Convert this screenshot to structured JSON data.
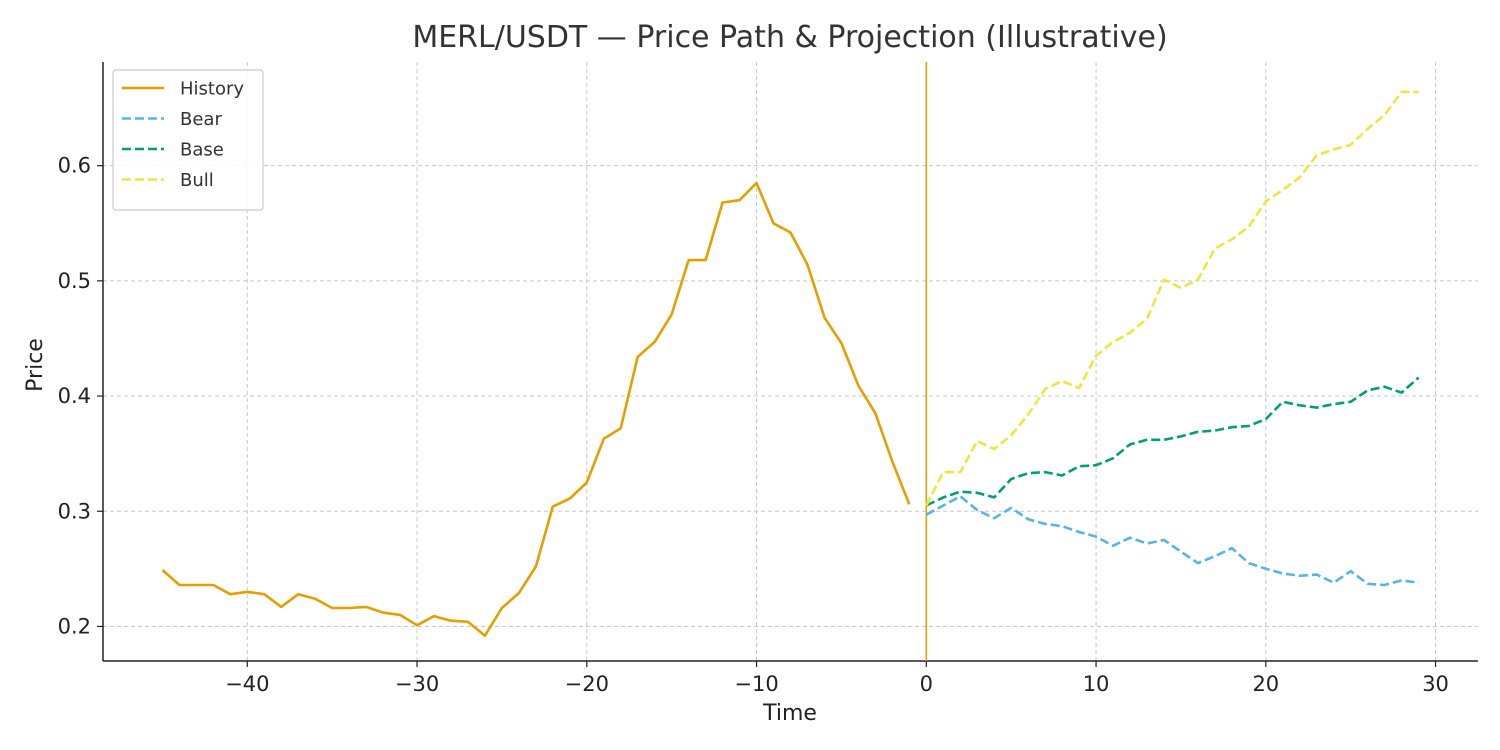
{
  "chart_data": {
    "type": "line",
    "title": "MERL/USDT — Price Path & Projection (Illustrative)",
    "xlabel": "Time",
    "ylabel": "Price",
    "xlim": [
      -48.5,
      32.5
    ],
    "ylim": [
      0.17,
      0.69
    ],
    "xticks": [
      -40,
      -30,
      -20,
      -10,
      0,
      10,
      20,
      30
    ],
    "xtick_labels": [
      "−40",
      "−30",
      "−20",
      "−10",
      "0",
      "10",
      "20",
      "30"
    ],
    "yticks": [
      0.2,
      0.3,
      0.4,
      0.5,
      0.6
    ],
    "ytick_labels": [
      "0.2",
      "0.3",
      "0.4",
      "0.5",
      "0.6"
    ],
    "grid": true,
    "legend_position": "top-left",
    "vertical_line": {
      "x": 0,
      "color": "#E69F00"
    },
    "series": [
      {
        "name": "History",
        "style": "solid",
        "color": "#E69F00",
        "x": [
          -45,
          -44,
          -43,
          -42,
          -41,
          -40,
          -39,
          -38,
          -37,
          -36,
          -35,
          -34,
          -33,
          -32,
          -31,
          -30,
          -29,
          -28,
          -27,
          -26,
          -25,
          -24,
          -23,
          -22,
          -21,
          -20,
          -19,
          -18,
          -17,
          -16,
          -15,
          -14,
          -13,
          -12,
          -11,
          -10,
          -9,
          -8,
          -7,
          -6,
          -5,
          -4,
          -3,
          -2,
          -1
        ],
        "y": [
          0.249,
          0.236,
          0.236,
          0.236,
          0.228,
          0.23,
          0.228,
          0.217,
          0.228,
          0.224,
          0.216,
          0.216,
          0.217,
          0.212,
          0.21,
          0.201,
          0.209,
          0.205,
          0.204,
          0.192,
          0.216,
          0.229,
          0.252,
          0.304,
          0.311,
          0.325,
          0.363,
          0.372,
          0.434,
          0.447,
          0.471,
          0.518,
          0.518,
          0.568,
          0.57,
          0.585,
          0.55,
          0.542,
          0.514,
          0.468,
          0.446,
          0.409,
          0.385,
          0.343,
          0.306
        ]
      },
      {
        "name": "Bear",
        "style": "dashed",
        "color": "#56B4E9",
        "x": [
          0,
          1,
          2,
          3,
          4,
          5,
          6,
          7,
          8,
          9,
          10,
          11,
          12,
          13,
          14,
          15,
          16,
          17,
          18,
          19,
          20,
          21,
          22,
          23,
          24,
          25,
          26,
          27,
          28,
          29
        ],
        "y": [
          0.297,
          0.305,
          0.313,
          0.301,
          0.294,
          0.303,
          0.293,
          0.289,
          0.287,
          0.282,
          0.278,
          0.27,
          0.277,
          0.272,
          0.275,
          0.265,
          0.255,
          0.261,
          0.268,
          0.255,
          0.25,
          0.246,
          0.244,
          0.245,
          0.238,
          0.248,
          0.237,
          0.236,
          0.24,
          0.238
        ]
      },
      {
        "name": "Base",
        "style": "dashed",
        "color": "#009E73",
        "x": [
          0,
          1,
          2,
          3,
          4,
          5,
          6,
          7,
          8,
          9,
          10,
          11,
          12,
          13,
          14,
          15,
          16,
          17,
          18,
          19,
          20,
          21,
          22,
          23,
          24,
          25,
          26,
          27,
          28,
          29
        ],
        "y": [
          0.305,
          0.312,
          0.317,
          0.316,
          0.312,
          0.328,
          0.333,
          0.334,
          0.331,
          0.339,
          0.34,
          0.346,
          0.358,
          0.362,
          0.362,
          0.365,
          0.369,
          0.37,
          0.373,
          0.374,
          0.38,
          0.395,
          0.392,
          0.39,
          0.393,
          0.395,
          0.405,
          0.408,
          0.403,
          0.416
        ]
      },
      {
        "name": "Bull",
        "style": "dashed",
        "color": "#F0E442",
        "x": [
          0,
          1,
          2,
          3,
          4,
          5,
          6,
          7,
          8,
          9,
          10,
          11,
          12,
          13,
          14,
          15,
          16,
          17,
          18,
          19,
          20,
          21,
          22,
          23,
          24,
          25,
          26,
          27,
          28,
          29
        ],
        "y": [
          0.305,
          0.334,
          0.334,
          0.361,
          0.354,
          0.366,
          0.384,
          0.406,
          0.413,
          0.407,
          0.435,
          0.447,
          0.455,
          0.467,
          0.501,
          0.494,
          0.501,
          0.528,
          0.536,
          0.547,
          0.569,
          0.579,
          0.59,
          0.609,
          0.614,
          0.618,
          0.632,
          0.644,
          0.664,
          0.664
        ]
      }
    ]
  }
}
